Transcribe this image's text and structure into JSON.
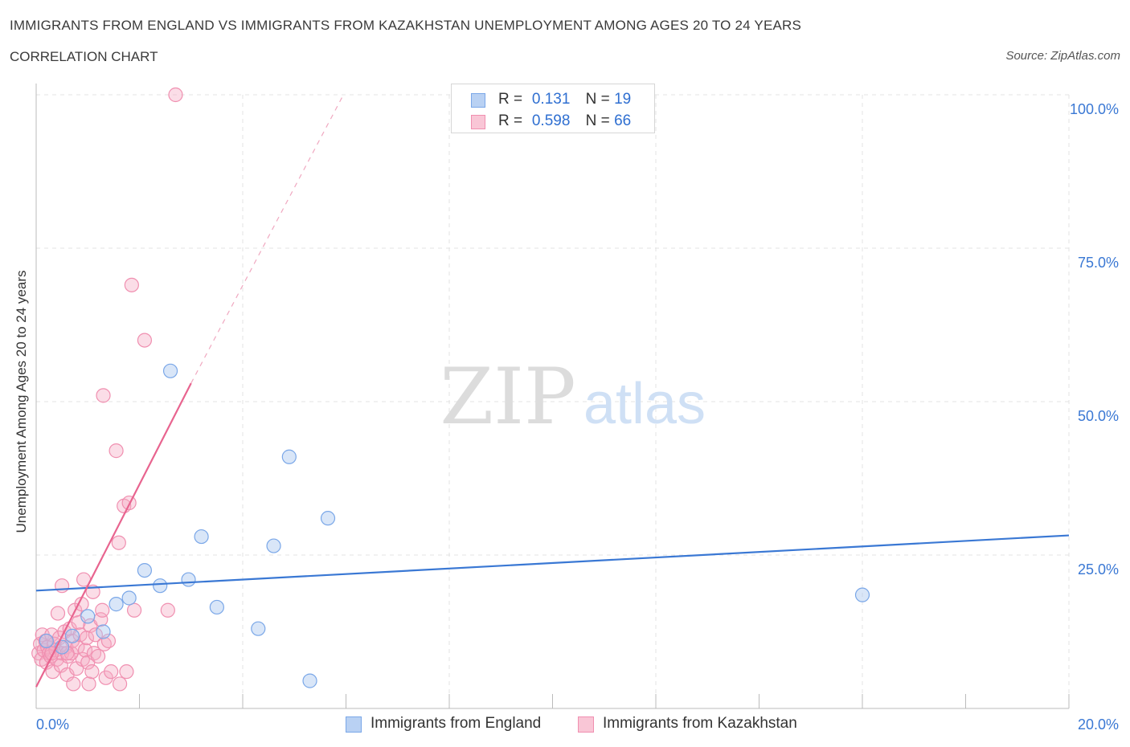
{
  "header": {
    "title": "IMMIGRANTS FROM ENGLAND VS IMMIGRANTS FROM KAZAKHSTAN UNEMPLOYMENT AMONG AGES 20 TO 24 YEARS",
    "subtitle": "CORRELATION CHART",
    "source": "Source: ZipAtlas.com"
  },
  "watermark": {
    "zip": "ZIP",
    "atlas": "atlas"
  },
  "stats": [
    {
      "r_label": "R =",
      "r_value": "0.131",
      "n_label": "N =",
      "n_value": "19",
      "color": "#7aa7e8",
      "fill": "#b9d1f3"
    },
    {
      "r_label": "R =",
      "r_value": "0.598",
      "n_label": "N =",
      "n_value": "66",
      "color": "#f08fb0",
      "fill": "#f9c6d6"
    }
  ],
  "legend": [
    {
      "label": "Immigrants from England",
      "color": "#7aa7e8",
      "fill": "#b9d1f3"
    },
    {
      "label": "Immigrants from Kazakhstan",
      "color": "#f08fb0",
      "fill": "#f9c6d6"
    }
  ],
  "chart_data": {
    "type": "scatter",
    "title": "IMMIGRANTS FROM ENGLAND VS IMMIGRANTS FROM KAZAKHSTAN UNEMPLOYMENT AMONG AGES 20 TO 24 YEARS",
    "xlabel": "",
    "ylabel": "Unemployment Among Ages 20 to 24 years",
    "xlim": [
      0,
      20
    ],
    "ylim": [
      0,
      100
    ],
    "x_tick_labels": [
      "0.0%",
      "20.0%"
    ],
    "y_tick_labels": [
      "25.0%",
      "50.0%",
      "75.0%",
      "100.0%"
    ],
    "y_ticks": [
      25,
      50,
      75,
      100
    ],
    "series": [
      {
        "name": "Immigrants from England",
        "color": "#3a78d4",
        "point_fill": "rgba(170,200,240,0.45)",
        "point_stroke": "#7aa7e8",
        "trend": {
          "x0": 0,
          "y0": 19.2,
          "x1": 20,
          "y1": 28.2,
          "dashed_to": null
        },
        "points": [
          [
            0.2,
            11.0
          ],
          [
            0.5,
            10.0
          ],
          [
            0.7,
            11.8
          ],
          [
            1.0,
            15.0
          ],
          [
            1.3,
            12.5
          ],
          [
            1.55,
            17.0
          ],
          [
            1.8,
            18.0
          ],
          [
            2.1,
            22.5
          ],
          [
            2.4,
            20.0
          ],
          [
            2.6,
            55.0
          ],
          [
            2.95,
            21.0
          ],
          [
            3.2,
            28.0
          ],
          [
            3.5,
            16.5
          ],
          [
            4.3,
            13.0
          ],
          [
            4.6,
            26.5
          ],
          [
            4.9,
            41.0
          ],
          [
            5.3,
            4.5
          ],
          [
            5.65,
            31.0
          ],
          [
            16.0,
            18.5
          ]
        ]
      },
      {
        "name": "Immigrants from Kazakhstan",
        "color": "#e8648f",
        "point_fill": "rgba(245,170,196,0.4)",
        "point_stroke": "#f08fb0",
        "trend": {
          "x0": 0,
          "y0": 3.5,
          "x1": 3.0,
          "y1": 53.0,
          "dashed_to": [
            5.95,
            100.0
          ]
        },
        "points": [
          [
            0.05,
            9.0
          ],
          [
            0.08,
            10.5
          ],
          [
            0.1,
            8.0
          ],
          [
            0.12,
            12.0
          ],
          [
            0.15,
            9.5
          ],
          [
            0.18,
            11.0
          ],
          [
            0.2,
            7.5
          ],
          [
            0.22,
            10.0
          ],
          [
            0.25,
            9.0
          ],
          [
            0.28,
            8.5
          ],
          [
            0.3,
            12.0
          ],
          [
            0.32,
            6.0
          ],
          [
            0.35,
            10.5
          ],
          [
            0.38,
            9.5
          ],
          [
            0.4,
            8.0
          ],
          [
            0.42,
            15.5
          ],
          [
            0.45,
            11.5
          ],
          [
            0.48,
            7.0
          ],
          [
            0.5,
            9.0
          ],
          [
            0.5,
            20.0
          ],
          [
            0.55,
            12.5
          ],
          [
            0.58,
            10.0
          ],
          [
            0.6,
            5.5
          ],
          [
            0.62,
            8.5
          ],
          [
            0.65,
            13.0
          ],
          [
            0.68,
            9.0
          ],
          [
            0.7,
            11.0
          ],
          [
            0.72,
            4.0
          ],
          [
            0.75,
            16.0
          ],
          [
            0.78,
            6.5
          ],
          [
            0.8,
            10.0
          ],
          [
            0.82,
            14.0
          ],
          [
            0.85,
            12.0
          ],
          [
            0.88,
            17.0
          ],
          [
            0.9,
            8.0
          ],
          [
            0.92,
            21.0
          ],
          [
            0.95,
            9.5
          ],
          [
            0.98,
            11.5
          ],
          [
            1.0,
            7.5
          ],
          [
            1.02,
            4.0
          ],
          [
            1.05,
            13.5
          ],
          [
            1.08,
            6.0
          ],
          [
            1.1,
            19.0
          ],
          [
            1.12,
            9.0
          ],
          [
            1.15,
            12.0
          ],
          [
            1.2,
            8.5
          ],
          [
            1.25,
            14.5
          ],
          [
            1.28,
            16.0
          ],
          [
            1.3,
            51.0
          ],
          [
            1.32,
            10.5
          ],
          [
            1.35,
            5.0
          ],
          [
            1.4,
            11.0
          ],
          [
            1.45,
            6.0
          ],
          [
            1.55,
            42.0
          ],
          [
            1.6,
            27.0
          ],
          [
            1.62,
            4.0
          ],
          [
            1.7,
            33.0
          ],
          [
            1.75,
            6.0
          ],
          [
            1.8,
            33.5
          ],
          [
            1.85,
            69.0
          ],
          [
            1.9,
            16.0
          ],
          [
            2.1,
            60.0
          ],
          [
            2.55,
            16.0
          ],
          [
            2.7,
            100.0
          ],
          [
            0.3,
            9.0
          ],
          [
            0.6,
            9.0
          ]
        ]
      }
    ]
  }
}
